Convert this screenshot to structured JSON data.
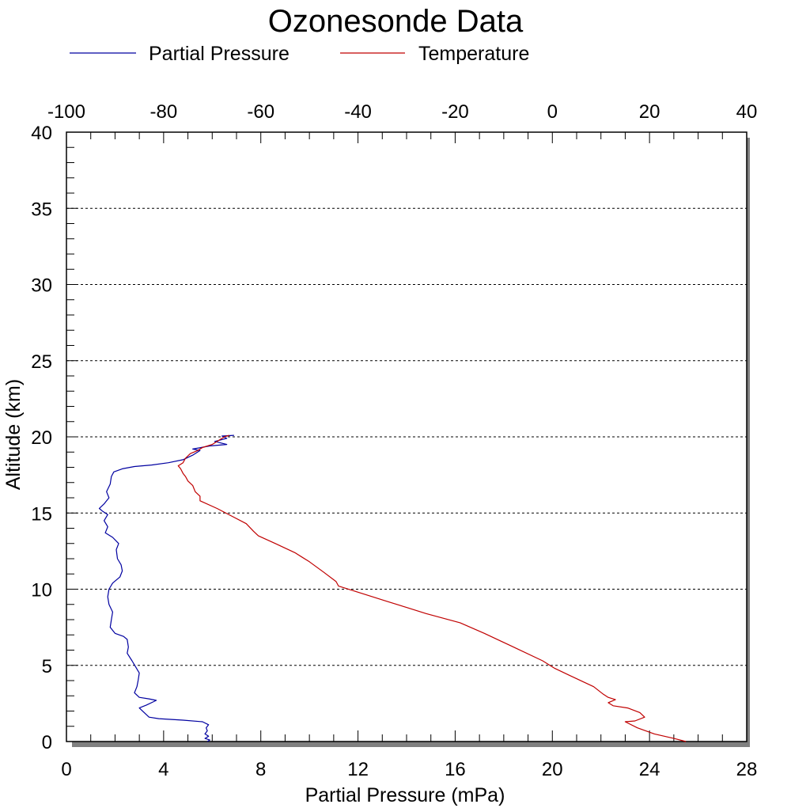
{
  "chart_data": {
    "type": "line",
    "title": "Ozonesonde Data",
    "xlabel": "Partial Pressure (mPa)",
    "ylabel": "Altitude (km)",
    "xlim": [
      0,
      28
    ],
    "x2lim": [
      -100,
      40
    ],
    "ylim": [
      0,
      40
    ],
    "xticks": [
      "0",
      "4",
      "8",
      "12",
      "16",
      "20",
      "24",
      "28"
    ],
    "x2ticks": [
      "-100",
      "-80",
      "-60",
      "-40",
      "-20",
      "0",
      "20",
      "40"
    ],
    "yticks": [
      "0",
      "5",
      "10",
      "15",
      "20",
      "25",
      "30",
      "35",
      "40"
    ],
    "grid": "horizontal dashed",
    "legend_position": "top",
    "series": [
      {
        "name": "Partial Pressure",
        "axis": "bottom",
        "color": "#0000a0",
        "points": [
          [
            5.8,
            0.0
          ],
          [
            5.9,
            0.1
          ],
          [
            5.7,
            0.2
          ],
          [
            5.85,
            0.35
          ],
          [
            5.7,
            0.5
          ],
          [
            5.8,
            0.7
          ],
          [
            5.75,
            0.9
          ],
          [
            5.85,
            1.1
          ],
          [
            5.6,
            1.3
          ],
          [
            4.8,
            1.4
          ],
          [
            3.8,
            1.5
          ],
          [
            3.4,
            1.6
          ],
          [
            3.2,
            1.9
          ],
          [
            3.0,
            2.2
          ],
          [
            3.3,
            2.4
          ],
          [
            3.7,
            2.7
          ],
          [
            3.4,
            2.8
          ],
          [
            3.0,
            2.9
          ],
          [
            2.8,
            3.2
          ],
          [
            2.9,
            3.6
          ],
          [
            2.95,
            4.0
          ],
          [
            3.0,
            4.5
          ],
          [
            2.85,
            4.9
          ],
          [
            2.7,
            5.3
          ],
          [
            2.5,
            5.8
          ],
          [
            2.55,
            6.2
          ],
          [
            2.5,
            6.7
          ],
          [
            2.35,
            6.9
          ],
          [
            2.0,
            7.1
          ],
          [
            1.8,
            7.5
          ],
          [
            1.85,
            8.0
          ],
          [
            1.9,
            8.5
          ],
          [
            1.75,
            9.0
          ],
          [
            1.7,
            9.5
          ],
          [
            1.75,
            10.0
          ],
          [
            1.9,
            10.4
          ],
          [
            2.2,
            10.8
          ],
          [
            2.3,
            11.2
          ],
          [
            2.25,
            11.6
          ],
          [
            2.1,
            12.0
          ],
          [
            2.05,
            12.6
          ],
          [
            2.15,
            13.0
          ],
          [
            1.9,
            13.4
          ],
          [
            1.6,
            13.7
          ],
          [
            1.7,
            14.1
          ],
          [
            1.55,
            14.5
          ],
          [
            1.7,
            14.9
          ],
          [
            1.5,
            15.1
          ],
          [
            1.35,
            15.3
          ],
          [
            1.55,
            15.6
          ],
          [
            1.75,
            16.0
          ],
          [
            1.65,
            16.4
          ],
          [
            1.8,
            16.9
          ],
          [
            1.85,
            17.4
          ],
          [
            1.95,
            17.7
          ],
          [
            2.3,
            17.9
          ],
          [
            2.8,
            18.05
          ],
          [
            3.5,
            18.15
          ],
          [
            4.2,
            18.3
          ],
          [
            4.8,
            18.5
          ],
          [
            5.2,
            18.8
          ],
          [
            5.5,
            19.1
          ],
          [
            5.2,
            19.2
          ],
          [
            5.9,
            19.4
          ],
          [
            6.6,
            19.5
          ],
          [
            6.1,
            19.7
          ],
          [
            6.6,
            19.9
          ],
          [
            6.4,
            20.05
          ],
          [
            6.9,
            20.1
          ]
        ]
      },
      {
        "name": "Temperature",
        "axis": "top",
        "color": "#c00000",
        "points": [
          [
            27.5,
            0.0
          ],
          [
            25.0,
            0.2
          ],
          [
            21.0,
            0.5
          ],
          [
            17.5,
            0.9
          ],
          [
            15.0,
            1.3
          ],
          [
            17.0,
            1.35
          ],
          [
            19.0,
            1.6
          ],
          [
            18.0,
            1.9
          ],
          [
            15.5,
            2.2
          ],
          [
            12.5,
            2.35
          ],
          [
            11.5,
            2.55
          ],
          [
            13.0,
            2.75
          ],
          [
            11.5,
            2.9
          ],
          [
            10.5,
            3.1
          ],
          [
            8.5,
            3.6
          ],
          [
            6.5,
            3.9
          ],
          [
            3.5,
            4.35
          ],
          [
            0.5,
            4.8
          ],
          [
            -2.0,
            5.3
          ],
          [
            -8.0,
            6.2
          ],
          [
            -14.0,
            7.1
          ],
          [
            -19.0,
            7.8
          ],
          [
            -26.0,
            8.4
          ],
          [
            -30.0,
            8.8
          ],
          [
            -34.0,
            9.2
          ],
          [
            -38.0,
            9.6
          ],
          [
            -44.0,
            10.2
          ],
          [
            -44.5,
            10.5
          ],
          [
            -47.0,
            11.1
          ],
          [
            -50.0,
            11.8
          ],
          [
            -53.0,
            12.4
          ],
          [
            -57.0,
            13.0
          ],
          [
            -60.5,
            13.5
          ],
          [
            -61.5,
            13.8
          ],
          [
            -63.0,
            14.3
          ],
          [
            -66.0,
            14.8
          ],
          [
            -69.0,
            15.3
          ],
          [
            -72.5,
            15.8
          ],
          [
            -72.5,
            16.1
          ],
          [
            -73.5,
            16.4
          ],
          [
            -74.0,
            16.8
          ],
          [
            -75.0,
            17.1
          ],
          [
            -75.5,
            17.4
          ],
          [
            -76.0,
            17.6
          ],
          [
            -76.5,
            17.9
          ],
          [
            -77.0,
            18.1
          ],
          [
            -76.0,
            18.3
          ],
          [
            -75.5,
            18.6
          ],
          [
            -74.5,
            18.9
          ],
          [
            -73.0,
            19.1
          ],
          [
            -72.0,
            19.3
          ],
          [
            -70.0,
            19.5
          ],
          [
            -68.5,
            19.8
          ],
          [
            -67.5,
            20.0
          ],
          [
            -66.5,
            20.1
          ]
        ]
      }
    ]
  }
}
